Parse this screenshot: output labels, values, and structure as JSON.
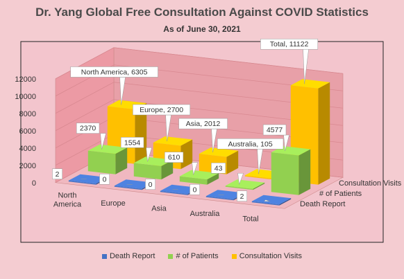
{
  "chart_data": {
    "type": "bar",
    "title": "Dr. Yang Global Free Consultation Against COVID Statistics",
    "subtitle": "As of June 30, 2021",
    "categories": [
      "North America",
      "Europe",
      "Asia",
      "Australia",
      "Total"
    ],
    "series": [
      {
        "name": "Death Report",
        "color": "#4472c4",
        "values": [
          2,
          0,
          0,
          0,
          2
        ]
      },
      {
        "name": "# of Patients",
        "color": "#92d050",
        "values": [
          2370,
          1554,
          610,
          43,
          4577
        ]
      },
      {
        "name": "Consultation Visits",
        "color": "#ffc000",
        "values": [
          6305,
          2700,
          2012,
          105,
          11122
        ]
      }
    ],
    "data_labels": {
      "Death Report": [
        "2",
        "0",
        "0",
        "0",
        "2"
      ],
      "# of Patients": [
        "2370",
        "1554",
        "610",
        "43",
        "4577"
      ],
      "Consultation Visits": [
        "North America, 6305",
        "Europe, 2700",
        "Asia, 2012",
        "Australia, 105",
        "Total, 11122"
      ]
    },
    "depth_axis_labels": [
      "Consultation Visits",
      "# of Patients",
      "Death Report"
    ],
    "y_ticks": [
      0,
      2000,
      4000,
      6000,
      8000,
      10000,
      12000
    ],
    "ylim": [
      0,
      12000
    ],
    "grid": true,
    "legend_position": "bottom",
    "style": "3d-column"
  }
}
